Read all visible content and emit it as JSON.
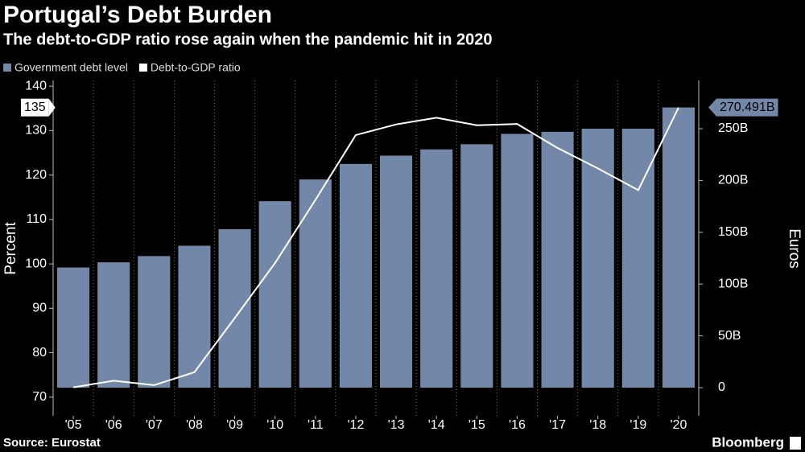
{
  "chart_data": {
    "type": "bar_line",
    "title": "Portugal’s Debt Burden",
    "subtitle": "The debt-to-GDP ratio rose again when the pandemic hit in 2020",
    "ylabel": "Percent",
    "y2label": "Euros",
    "categories": [
      "'05",
      "'06",
      "'07",
      "'08",
      "'09",
      "'10",
      "'11",
      "'12",
      "'13",
      "'14",
      "'15",
      "'16",
      "'17",
      "'18",
      "'19",
      "'20"
    ],
    "ylim": [
      65.8,
      141.3
    ],
    "yticks": [
      70,
      80,
      90,
      100,
      110,
      120,
      130,
      140
    ],
    "y2lim": [
      -27.2,
      296.6
    ],
    "y2ticks": [
      0,
      {
        "value": 50,
        "label": "50B"
      },
      {
        "value": 100,
        "label": "100B"
      },
      {
        "value": 150,
        "label": "150B"
      },
      {
        "value": 200,
        "label": "200B"
      },
      {
        "value": 250,
        "label": "250B"
      }
    ],
    "grid": true,
    "series": [
      {
        "name": "Government debt level",
        "type": "bar",
        "axis": "y2",
        "color": "#7388a9",
        "values": [
          116,
          121,
          127,
          137,
          153,
          180,
          201,
          216,
          224,
          230,
          235,
          245,
          247,
          250,
          250,
          270.491
        ],
        "value_labels": [
          null,
          null,
          null,
          null,
          null,
          null,
          null,
          null,
          null,
          null,
          null,
          null,
          null,
          null,
          null,
          "270.491B"
        ]
      },
      {
        "name": "Debt-to-GDP ratio",
        "type": "line",
        "axis": "y",
        "color": "#ffffff",
        "values": [
          72.2,
          73.7,
          72.7,
          75.6,
          87.8,
          100.2,
          114.4,
          129.0,
          131.4,
          132.9,
          131.2,
          131.5,
          126.1,
          121.5,
          116.6,
          135.2
        ],
        "value_labels": [
          null,
          null,
          null,
          null,
          null,
          null,
          null,
          null,
          null,
          null,
          null,
          null,
          null,
          null,
          null,
          "135"
        ]
      }
    ]
  },
  "footer": {
    "source": "Source: Eurostat",
    "brand": "Bloomberg"
  }
}
